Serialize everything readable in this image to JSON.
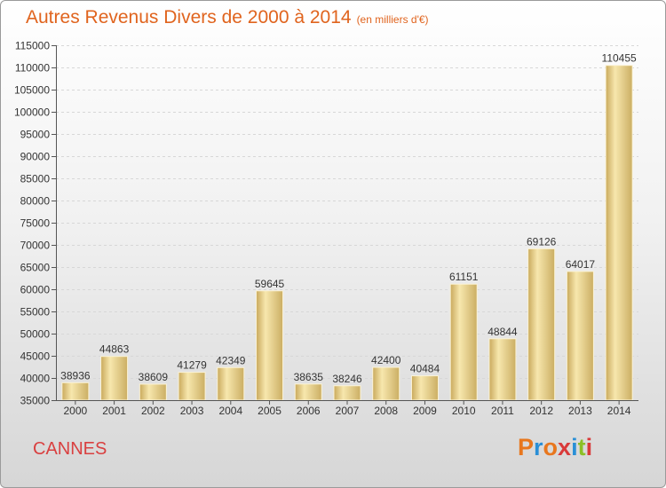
{
  "header": {
    "title": "Autres Revenus Divers de 2000 à 2014",
    "unit": "(en milliers d'€)"
  },
  "footer": {
    "city": "CANNES",
    "logo_text": "Proxiti",
    "logo_colors": [
      "#e8771e",
      "#2a8fd6",
      "#e8771e",
      "#d93a3a",
      "#2a8fd6",
      "#8cbf26",
      "#d93a3a"
    ]
  },
  "colors": {
    "title": "#e0641e",
    "city": "#d94040",
    "bar_light": "#f7e7ad",
    "bar_dark": "#c9a95c"
  },
  "chart_data": {
    "type": "bar",
    "title": "Autres Revenus Divers de 2000 à 2014",
    "subtitle": "(en milliers d'€)",
    "categories": [
      "2000",
      "2001",
      "2002",
      "2003",
      "2004",
      "2005",
      "2006",
      "2007",
      "2008",
      "2009",
      "2010",
      "2011",
      "2012",
      "2013",
      "2014"
    ],
    "values": [
      38936,
      44863,
      38609,
      41279,
      42349,
      59645,
      38635,
      38246,
      42400,
      40484,
      61151,
      48844,
      69126,
      64017,
      110455
    ],
    "ylim": [
      35000,
      115000
    ],
    "yticks": [
      35000,
      40000,
      45000,
      50000,
      55000,
      60000,
      65000,
      70000,
      75000,
      80000,
      85000,
      90000,
      95000,
      100000,
      105000,
      110000,
      115000
    ],
    "grid": true,
    "data_labels": true
  }
}
